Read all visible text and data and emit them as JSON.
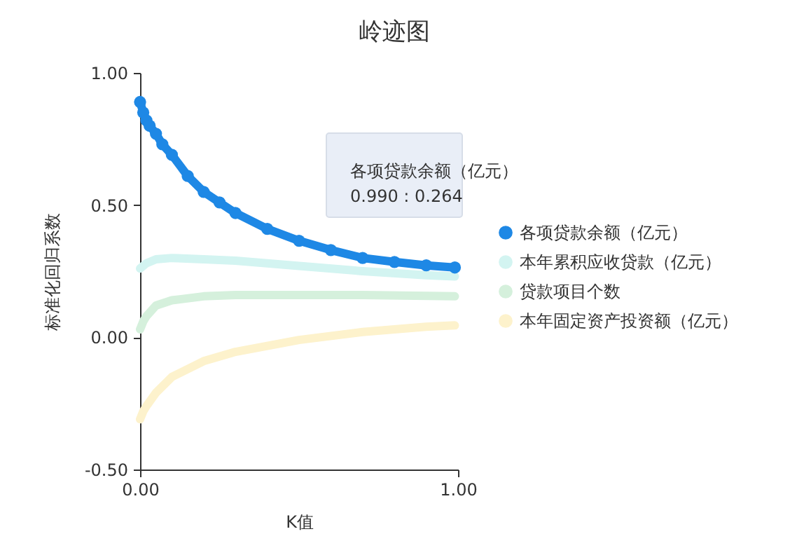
{
  "chart_data": {
    "type": "line",
    "title": "岭迹图",
    "xlabel": "K值",
    "ylabel": "标准化回归系数",
    "xlim": [
      0,
      1
    ],
    "xticks": [
      {
        "value": 0,
        "label": "0.00"
      },
      {
        "value": 1,
        "label": "1.00"
      }
    ],
    "ylim": [
      -0.5,
      1
    ],
    "yticks": [
      {
        "value": -0.5,
        "label": "-0.50"
      },
      {
        "value": 0,
        "label": "0.00"
      },
      {
        "value": 0.5,
        "label": "0.50"
      },
      {
        "value": 1,
        "label": "1.00"
      }
    ],
    "grid": false,
    "legend": "right",
    "line_style": "solid",
    "series": [
      {
        "name": "各项贷款余额（亿元）",
        "color": "#1e88e5",
        "marker": "circle",
        "x": [
          0,
          0.01,
          0.02,
          0.03,
          0.05,
          0.07,
          0.1,
          0.15,
          0.2,
          0.25,
          0.3,
          0.4,
          0.5,
          0.6,
          0.7,
          0.8,
          0.9,
          0.99
        ],
        "values": [
          0.89,
          0.85,
          0.82,
          0.8,
          0.77,
          0.73,
          0.69,
          0.61,
          0.55,
          0.51,
          0.47,
          0.41,
          0.365,
          0.33,
          0.3,
          0.285,
          0.272,
          0.264
        ]
      },
      {
        "name": "本年累积应收贷款（亿元）",
        "color": "#d3f4f1",
        "x": [
          0,
          0.01,
          0.02,
          0.05,
          0.1,
          0.2,
          0.3,
          0.5,
          0.7,
          0.9,
          0.99
        ],
        "values": [
          0.26,
          0.27,
          0.28,
          0.295,
          0.3,
          0.295,
          0.29,
          0.27,
          0.25,
          0.235,
          0.23
        ]
      },
      {
        "name": "贷款项目个数",
        "color": "#d5f0dc",
        "x": [
          0,
          0.01,
          0.02,
          0.05,
          0.1,
          0.2,
          0.3,
          0.5,
          0.7,
          0.99
        ],
        "values": [
          0.03,
          0.06,
          0.08,
          0.12,
          0.14,
          0.155,
          0.16,
          0.16,
          0.16,
          0.155
        ]
      },
      {
        "name": "本年固定资产投资额（亿元）",
        "color": "#fdf2cc",
        "x": [
          0,
          0.01,
          0.02,
          0.05,
          0.1,
          0.2,
          0.3,
          0.5,
          0.7,
          0.9,
          0.99
        ],
        "values": [
          -0.31,
          -0.28,
          -0.26,
          -0.21,
          -0.15,
          -0.09,
          -0.055,
          -0.01,
          0.02,
          0.04,
          0.045
        ]
      }
    ],
    "annotations": [
      "各项贷款余额（亿元）",
      "0.990 : 0.264"
    ]
  }
}
